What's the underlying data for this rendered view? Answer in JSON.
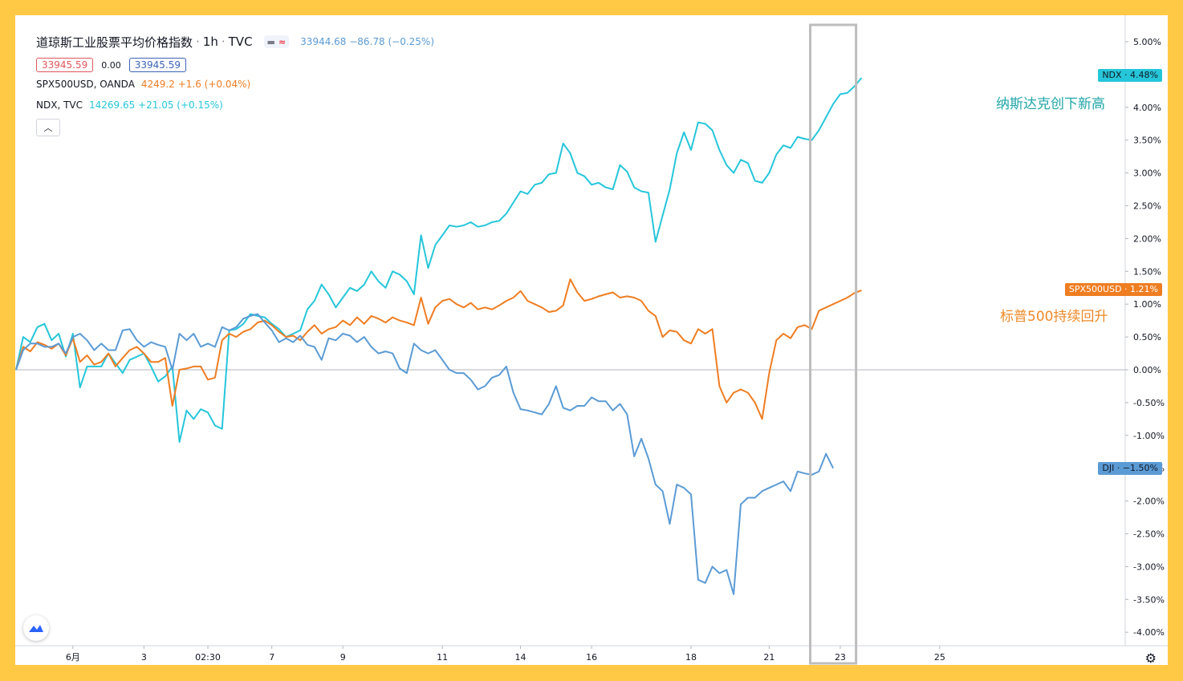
{
  "legend": {
    "title": "道琼斯工业股票平均价格指数",
    "interval": "1h",
    "exchange": "TVC",
    "main_quote": "33944.68 −86.78 (−0.25%)",
    "bid": "33945.59",
    "spread": "0.00",
    "ask": "33945.59",
    "series": [
      {
        "name": "SPX500USD, OANDA",
        "quote": "4249.2 +1.6 (+0.04%)"
      },
      {
        "name": "NDX, TVC",
        "quote": "14269.65 +21.05 (+0.15%)"
      }
    ],
    "collapse_icon": "chevron-up-icon"
  },
  "annotations": {
    "ndx": "纳斯达克创下新高",
    "spx": "标普500持续回升"
  },
  "tags": {
    "ndx": "NDX · 4.48%",
    "spx": "SPX500USD · 1.21%",
    "dji": "DJI · −1.50%"
  },
  "colors": {
    "page_border": "#FFC845",
    "ndx": "#26C6DA",
    "spx": "#EF7D22",
    "dji": "#5B9BD5",
    "dji_text": "#5B9BD5",
    "bid_border": "#E0575D",
    "ask_border": "#3D63B8",
    "grid_zero": "#B2B5BE",
    "highlight_box": "#BDBDBD",
    "ann_ndx": "#21A6A8",
    "ann_spx": "#EE8A2A"
  },
  "chart_data": {
    "type": "line",
    "y_unit": "%",
    "ylim": [
      -4.25,
      5.35
    ],
    "y_ticks": [
      "5.00%",
      "4.50%",
      "4.00%",
      "3.50%",
      "3.00%",
      "2.50%",
      "2.00%",
      "1.50%",
      "1.00%",
      "0.50%",
      "0.00%",
      "-0.50%",
      "-1.00%",
      "-1.50%",
      "-2.00%",
      "-2.50%",
      "-3.00%",
      "-3.50%",
      "-4.00%"
    ],
    "x_ticks": [
      "6月",
      "3",
      "02:30",
      "7",
      "9",
      "11",
      "14",
      "16",
      "18",
      "21",
      "23",
      "25"
    ],
    "x_tick_index": [
      8,
      18,
      27,
      36,
      46,
      60,
      71,
      81,
      95,
      106,
      116,
      130
    ],
    "x_count": 137,
    "highlight": {
      "label": "23",
      "from_index": 112,
      "to_index": 118
    },
    "series": [
      {
        "name": "NDX",
        "color": "#26C6DA",
        "values": [
          0,
          0.5,
          0.42,
          0.65,
          0.7,
          0.45,
          0.55,
          0.2,
          0.55,
          -0.27,
          0.05,
          0.05,
          0.05,
          0.25,
          0.1,
          -0.05,
          0.15,
          0.2,
          0.25,
          0.05,
          -0.18,
          -0.1,
          0.05,
          -1.1,
          -0.62,
          -0.75,
          -0.6,
          -0.65,
          -0.85,
          -0.9,
          0.6,
          0.62,
          0.7,
          0.85,
          0.82,
          0.8,
          0.7,
          0.62,
          0.5,
          0.55,
          0.6,
          0.92,
          1.05,
          1.3,
          1.15,
          0.95,
          1.1,
          1.25,
          1.2,
          1.3,
          1.5,
          1.35,
          1.25,
          1.5,
          1.45,
          1.35,
          1.15,
          2.05,
          1.55,
          1.9,
          2.05,
          2.2,
          2.18,
          2.2,
          2.25,
          2.18,
          2.2,
          2.25,
          2.27,
          2.38,
          2.55,
          2.72,
          2.68,
          2.82,
          2.85,
          2.98,
          3.0,
          3.45,
          3.3,
          3.0,
          2.95,
          2.82,
          2.85,
          2.78,
          2.75,
          3.12,
          3.02,
          2.78,
          2.72,
          2.7,
          1.95,
          2.35,
          2.75,
          3.3,
          3.62,
          3.35,
          3.77,
          3.75,
          3.65,
          3.35,
          3.12,
          3.0,
          3.2,
          3.15,
          2.88,
          2.85,
          3.0,
          3.28,
          3.42,
          3.38,
          3.55,
          3.52,
          3.5,
          3.65,
          3.85,
          4.05,
          4.2,
          4.22,
          4.32,
          4.45
        ]
      },
      {
        "name": "SPX500USD",
        "color": "#EF7D22",
        "values": [
          0,
          0.35,
          0.28,
          0.42,
          0.38,
          0.32,
          0.4,
          0.22,
          0.48,
          0.12,
          0.22,
          0.08,
          0.12,
          0.25,
          0.05,
          0.18,
          0.3,
          0.35,
          0.25,
          0.12,
          0.12,
          0.18,
          -0.55,
          0,
          0.02,
          0.05,
          0.05,
          -0.15,
          -0.12,
          0.45,
          0.55,
          0.5,
          0.58,
          0.62,
          0.72,
          0.75,
          0.68,
          0.58,
          0.5,
          0.52,
          0.45,
          0.58,
          0.68,
          0.55,
          0.62,
          0.65,
          0.75,
          0.68,
          0.8,
          0.7,
          0.82,
          0.78,
          0.72,
          0.8,
          0.75,
          0.72,
          0.68,
          1.1,
          0.7,
          0.95,
          1.05,
          1.08,
          1.0,
          0.95,
          1.02,
          0.92,
          0.95,
          0.92,
          0.98,
          1.05,
          1.1,
          1.2,
          1.05,
          1.0,
          0.95,
          0.88,
          0.9,
          0.98,
          1.38,
          1.18,
          1.05,
          1.08,
          1.12,
          1.15,
          1.18,
          1.1,
          1.12,
          1.1,
          1.05,
          0.9,
          0.82,
          0.5,
          0.6,
          0.58,
          0.45,
          0.4,
          0.62,
          0.55,
          0.62,
          -0.25,
          -0.5,
          -0.35,
          -0.3,
          -0.35,
          -0.5,
          -0.75,
          -0.05,
          0.45,
          0.55,
          0.48,
          0.65,
          0.68,
          0.62,
          0.9,
          0.95,
          1.0,
          1.05,
          1.1,
          1.17,
          1.21
        ]
      },
      {
        "name": "DJI",
        "color": "#5B9BD5",
        "values": [
          0,
          0.3,
          0.4,
          0.4,
          0.35,
          0.35,
          0.4,
          0.25,
          0.5,
          0.55,
          0.45,
          0.3,
          0.4,
          0.3,
          0.3,
          0.6,
          0.62,
          0.45,
          0.35,
          0.42,
          0.38,
          0.35,
          0,
          0.55,
          0.45,
          0.55,
          0.35,
          0.4,
          0.35,
          0.65,
          0.6,
          0.65,
          0.78,
          0.82,
          0.85,
          0.72,
          0.6,
          0.42,
          0.48,
          0.42,
          0.52,
          0.38,
          0.35,
          0.15,
          0.48,
          0.45,
          0.55,
          0.52,
          0.42,
          0.5,
          0.35,
          0.25,
          0.28,
          0.25,
          0.02,
          -0.05,
          0.4,
          0.3,
          0.25,
          0.3,
          0.15,
          0,
          -0.05,
          -0.05,
          -0.15,
          -0.3,
          -0.25,
          -0.12,
          -0.08,
          0.05,
          -0.35,
          -0.6,
          -0.62,
          -0.65,
          -0.68,
          -0.52,
          -0.25,
          -0.58,
          -0.62,
          -0.55,
          -0.55,
          -0.42,
          -0.48,
          -0.48,
          -0.62,
          -0.52,
          -0.68,
          -1.32,
          -1.05,
          -1.35,
          -1.75,
          -1.85,
          -2.35,
          -1.75,
          -1.8,
          -1.9,
          -3.2,
          -3.25,
          -3.0,
          -3.1,
          -3.05,
          -3.42,
          -2.05,
          -1.95,
          -1.95,
          -1.85,
          -1.8,
          -1.75,
          -1.7,
          -1.85,
          -1.55,
          -1.58,
          -1.6,
          -1.55,
          -1.28,
          -1.5
        ]
      }
    ]
  }
}
